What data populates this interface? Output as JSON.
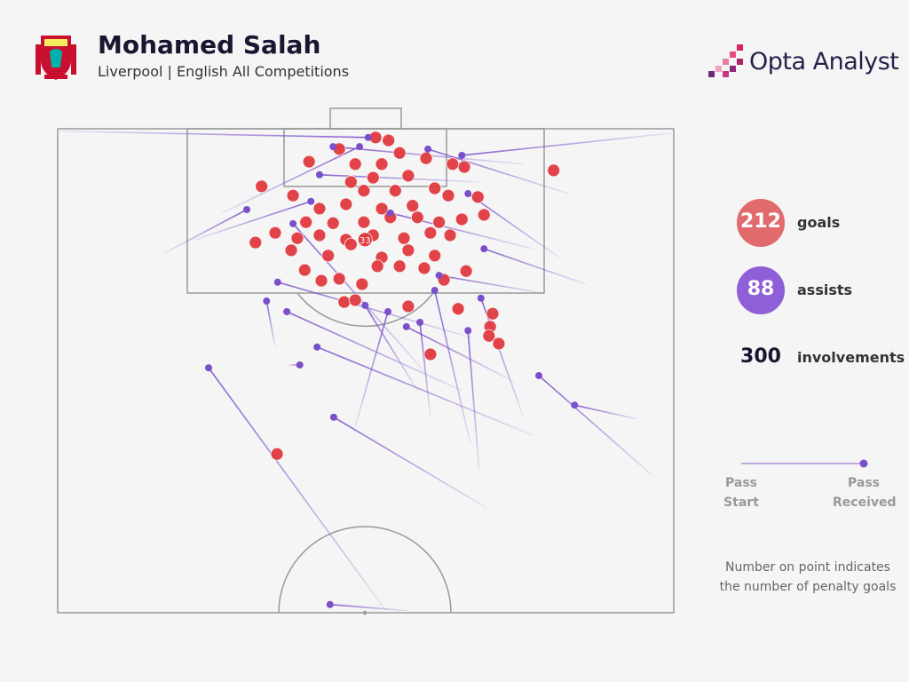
{
  "header": {
    "title": "Mohamed Salah",
    "subtitle": "Liverpool | English All Competitions",
    "brand": "Opta Analyst"
  },
  "stats": [
    {
      "value": 212,
      "label": "goals",
      "color": "#e06a6c"
    },
    {
      "value": 88,
      "label": "assists",
      "color": "#8e5fd8"
    },
    {
      "value": 300,
      "label": "involvements"
    }
  ],
  "legend": {
    "start": "Pass Start",
    "end": "Pass Received"
  },
  "note": "Number on point indicates the number of penalty goals",
  "pitch": {
    "penalty": {
      "value": 33,
      "x": 49.9,
      "y": 22.9
    },
    "goal_color": "#e0393e",
    "assist_color": "#7b4fc9",
    "goals": {
      "x": [
        51.6,
        53.7,
        45.7,
        55.5,
        59.8,
        40.8,
        48.3,
        52.6,
        64.1,
        66.0,
        80.5,
        47.6,
        51.2,
        56.9,
        33.1,
        38.2,
        49.7,
        54.8,
        61.2,
        68.2,
        63.4,
        42.5,
        46.8,
        52.6,
        57.6,
        69.2,
        65.6,
        40.3,
        44.7,
        49.7,
        54.0,
        58.4,
        61.9,
        35.3,
        38.9,
        42.5,
        46.8,
        51.2,
        56.2,
        60.5,
        63.7,
        32.1,
        37.9,
        43.9,
        47.6,
        52.6,
        56.9,
        61.2,
        40.1,
        42.8,
        45.7,
        49.4,
        51.9,
        55.5,
        59.5,
        62.7,
        66.3,
        46.5,
        48.3,
        56.9,
        65.0,
        70.6,
        70.2,
        70.0,
        71.6,
        60.5,
        35.6
      ],
      "y": [
        1.8,
        2.4,
        4.2,
        5.0,
        6.1,
        6.8,
        7.3,
        7.3,
        7.3,
        7.9,
        8.6,
        11.0,
        10.1,
        9.7,
        11.9,
        13.8,
        12.8,
        12.8,
        12.3,
        14.1,
        13.8,
        16.5,
        15.6,
        16.5,
        15.9,
        17.8,
        18.7,
        19.3,
        19.5,
        19.3,
        18.3,
        18.3,
        19.3,
        21.5,
        22.6,
        22.0,
        22.9,
        22.0,
        22.6,
        21.5,
        22.0,
        23.5,
        25.1,
        26.2,
        23.9,
        26.6,
        25.1,
        26.2,
        29.2,
        31.4,
        31.0,
        32.1,
        28.4,
        28.4,
        28.8,
        31.2,
        29.4,
        35.8,
        35.4,
        36.7,
        37.2,
        38.2,
        40.9,
        42.8,
        44.4,
        46.6,
        67.2
      ]
    },
    "assists": {
      "end_x": [
        24.5,
        44.8,
        44.2,
        83.9,
        78.1,
        39.3,
        42.1,
        37.2,
        33.9,
        35.7,
        30.7,
        50.4,
        65.6,
        60.1,
        42.5,
        69.2,
        66.6,
        68.7,
        53.6,
        58.8,
        56.6,
        49.9,
        61.9,
        61.2,
        44.7,
        49.0,
        41.1,
        38.2,
        66.6,
        54.0
      ],
      "end_y": [
        49.4,
        59.6,
        98.3,
        57.1,
        51.0,
        48.8,
        45.1,
        37.8,
        35.6,
        31.7,
        16.7,
        1.8,
        5.5,
        4.2,
        9.5,
        24.8,
        41.7,
        35.0,
        37.8,
        40.0,
        40.9,
        36.5,
        30.3,
        33.4,
        3.7,
        3.7,
        15.0,
        19.6,
        13.4,
        17.4
      ],
      "start_x": [
        53.3,
        69.6,
        56.9,
        94.1,
        96.5,
        37.5,
        77.1,
        65.6,
        35.3,
        67.0,
        17.3,
        0.4,
        99.6,
        82.9,
        68.4,
        85.7,
        68.4,
        75.6,
        48.3,
        60.5,
        74.2,
        58.4,
        78.5,
        67.0,
        75.6,
        26.7,
        22.3,
        59.8,
        81.4,
        77.1
      ],
      "start_y": [
        99.6,
        78.3,
        99.6,
        60.0,
        71.6,
        48.8,
        63.3,
        54.1,
        45.0,
        43.1,
        25.7,
        0.5,
        0.9,
        13.4,
        11.0,
        32.1,
        70.6,
        59.6,
        61.5,
        59.6,
        52.3,
        54.1,
        33.9,
        65.1,
        7.3,
        17.4,
        22.9,
        50.5,
        26.6,
        24.8
      ]
    }
  }
}
